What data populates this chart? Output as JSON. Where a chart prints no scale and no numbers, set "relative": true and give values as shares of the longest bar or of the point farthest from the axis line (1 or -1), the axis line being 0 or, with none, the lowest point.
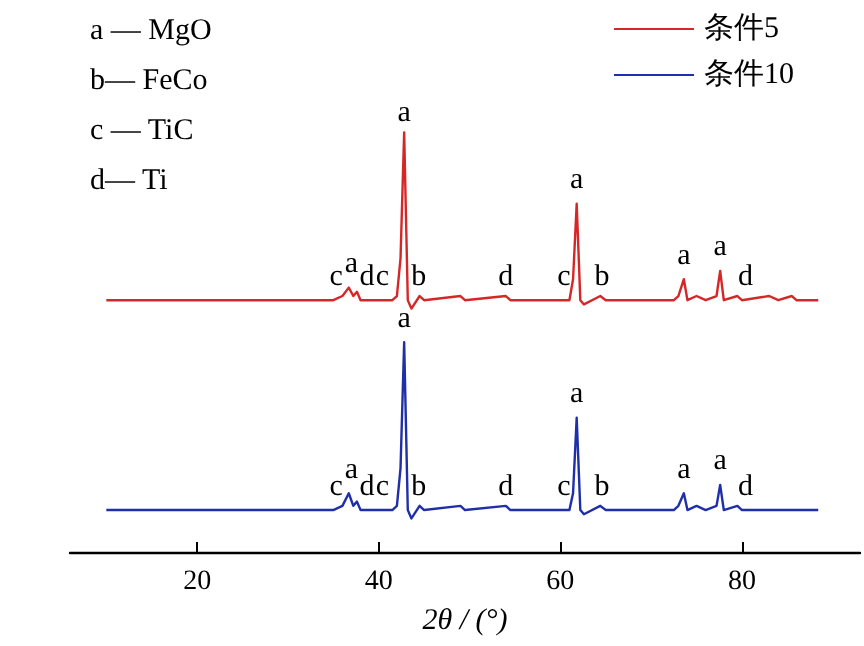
{
  "chart_data": {
    "type": "line",
    "relative": true,
    "xlabel": "2θ / (°)",
    "xlim": [
      6,
      93
    ],
    "xticks": [
      20,
      40,
      60,
      80
    ],
    "grid": false,
    "legend": "top right",
    "marker": "none",
    "line_style": "solid",
    "tick_labels": "x",
    "x": [
      10,
      20,
      35,
      36,
      36.7,
      37.2,
      37.6,
      38,
      41.5,
      42,
      42.4,
      42.8,
      43.2,
      43.6,
      44.5,
      45,
      49,
      49.5,
      54,
      54.5,
      61,
      61.4,
      61.8,
      62.2,
      62.6,
      64.4,
      65,
      72.5,
      73,
      73.6,
      74,
      75,
      76,
      77.2,
      77.6,
      78,
      79.5,
      80,
      83,
      84,
      85.5,
      86,
      88.4
    ],
    "series": [
      {
        "name": "条件5",
        "color": "#d62728",
        "values": [
          0.6,
          0.6,
          0.6,
          0.61,
          0.63,
          0.61,
          0.62,
          0.6,
          0.6,
          0.61,
          0.7,
          1,
          0.6,
          0.58,
          0.61,
          0.6,
          0.61,
          0.6,
          0.61,
          0.6,
          0.6,
          0.65,
          0.83,
          0.6,
          0.59,
          0.61,
          0.6,
          0.6,
          0.61,
          0.65,
          0.6,
          0.61,
          0.6,
          0.61,
          0.67,
          0.6,
          0.61,
          0.6,
          0.61,
          0.6,
          0.61,
          0.6,
          0.6
        ]
      },
      {
        "name": "条件10",
        "color": "#1f2fa8",
        "values": [
          0.1,
          0.1,
          0.1,
          0.11,
          0.14,
          0.11,
          0.12,
          0.1,
          0.1,
          0.11,
          0.2,
          0.5,
          0.1,
          0.08,
          0.11,
          0.1,
          0.11,
          0.1,
          0.11,
          0.1,
          0.1,
          0.14,
          0.32,
          0.1,
          0.09,
          0.11,
          0.1,
          0.1,
          0.11,
          0.14,
          0.1,
          0.11,
          0.1,
          0.11,
          0.16,
          0.1,
          0.11,
          0.1,
          0.1,
          0.1,
          0.1,
          0.1,
          0.1
        ]
      }
    ],
    "annotations": [
      "a — MgO",
      "b— FeCo",
      "c — TiC",
      "d— Ti",
      {
        "text": "c",
        "x": 35.3,
        "y": 0.62
      },
      {
        "text": "a",
        "x": 37,
        "y": 0.65
      },
      {
        "text": "d",
        "x": 38.7,
        "y": 0.62
      },
      {
        "text": "c",
        "x": 40.4,
        "y": 0.62
      },
      {
        "text": "b",
        "x": 44.4,
        "y": 0.62
      },
      {
        "text": "a",
        "x": 42.8,
        "y": 1.01
      },
      {
        "text": "d",
        "x": 54,
        "y": 0.62
      },
      {
        "text": "c",
        "x": 60.4,
        "y": 0.62
      },
      {
        "text": "a",
        "x": 61.8,
        "y": 0.85
      },
      {
        "text": "b",
        "x": 64.6,
        "y": 0.62
      },
      {
        "text": "a",
        "x": 73.6,
        "y": 0.67
      },
      {
        "text": "a",
        "x": 77.6,
        "y": 0.69
      },
      {
        "text": "d",
        "x": 80.4,
        "y": 0.62
      },
      {
        "text": "c",
        "x": 35.3,
        "y": 0.12
      },
      {
        "text": "a",
        "x": 37,
        "y": 0.16
      },
      {
        "text": "d",
        "x": 38.7,
        "y": 0.12
      },
      {
        "text": "c",
        "x": 40.4,
        "y": 0.12
      },
      {
        "text": "b",
        "x": 44.4,
        "y": 0.12
      },
      {
        "text": "a",
        "x": 42.8,
        "y": 0.52
      },
      {
        "text": "d",
        "x": 54,
        "y": 0.12
      },
      {
        "text": "c",
        "x": 60.4,
        "y": 0.12
      },
      {
        "text": "a",
        "x": 61.8,
        "y": 0.34
      },
      {
        "text": "b",
        "x": 64.6,
        "y": 0.12
      },
      {
        "text": "a",
        "x": 73.6,
        "y": 0.16
      },
      {
        "text": "a",
        "x": 77.6,
        "y": 0.18
      },
      {
        "text": "d",
        "x": 80.4,
        "y": 0.12
      }
    ]
  }
}
